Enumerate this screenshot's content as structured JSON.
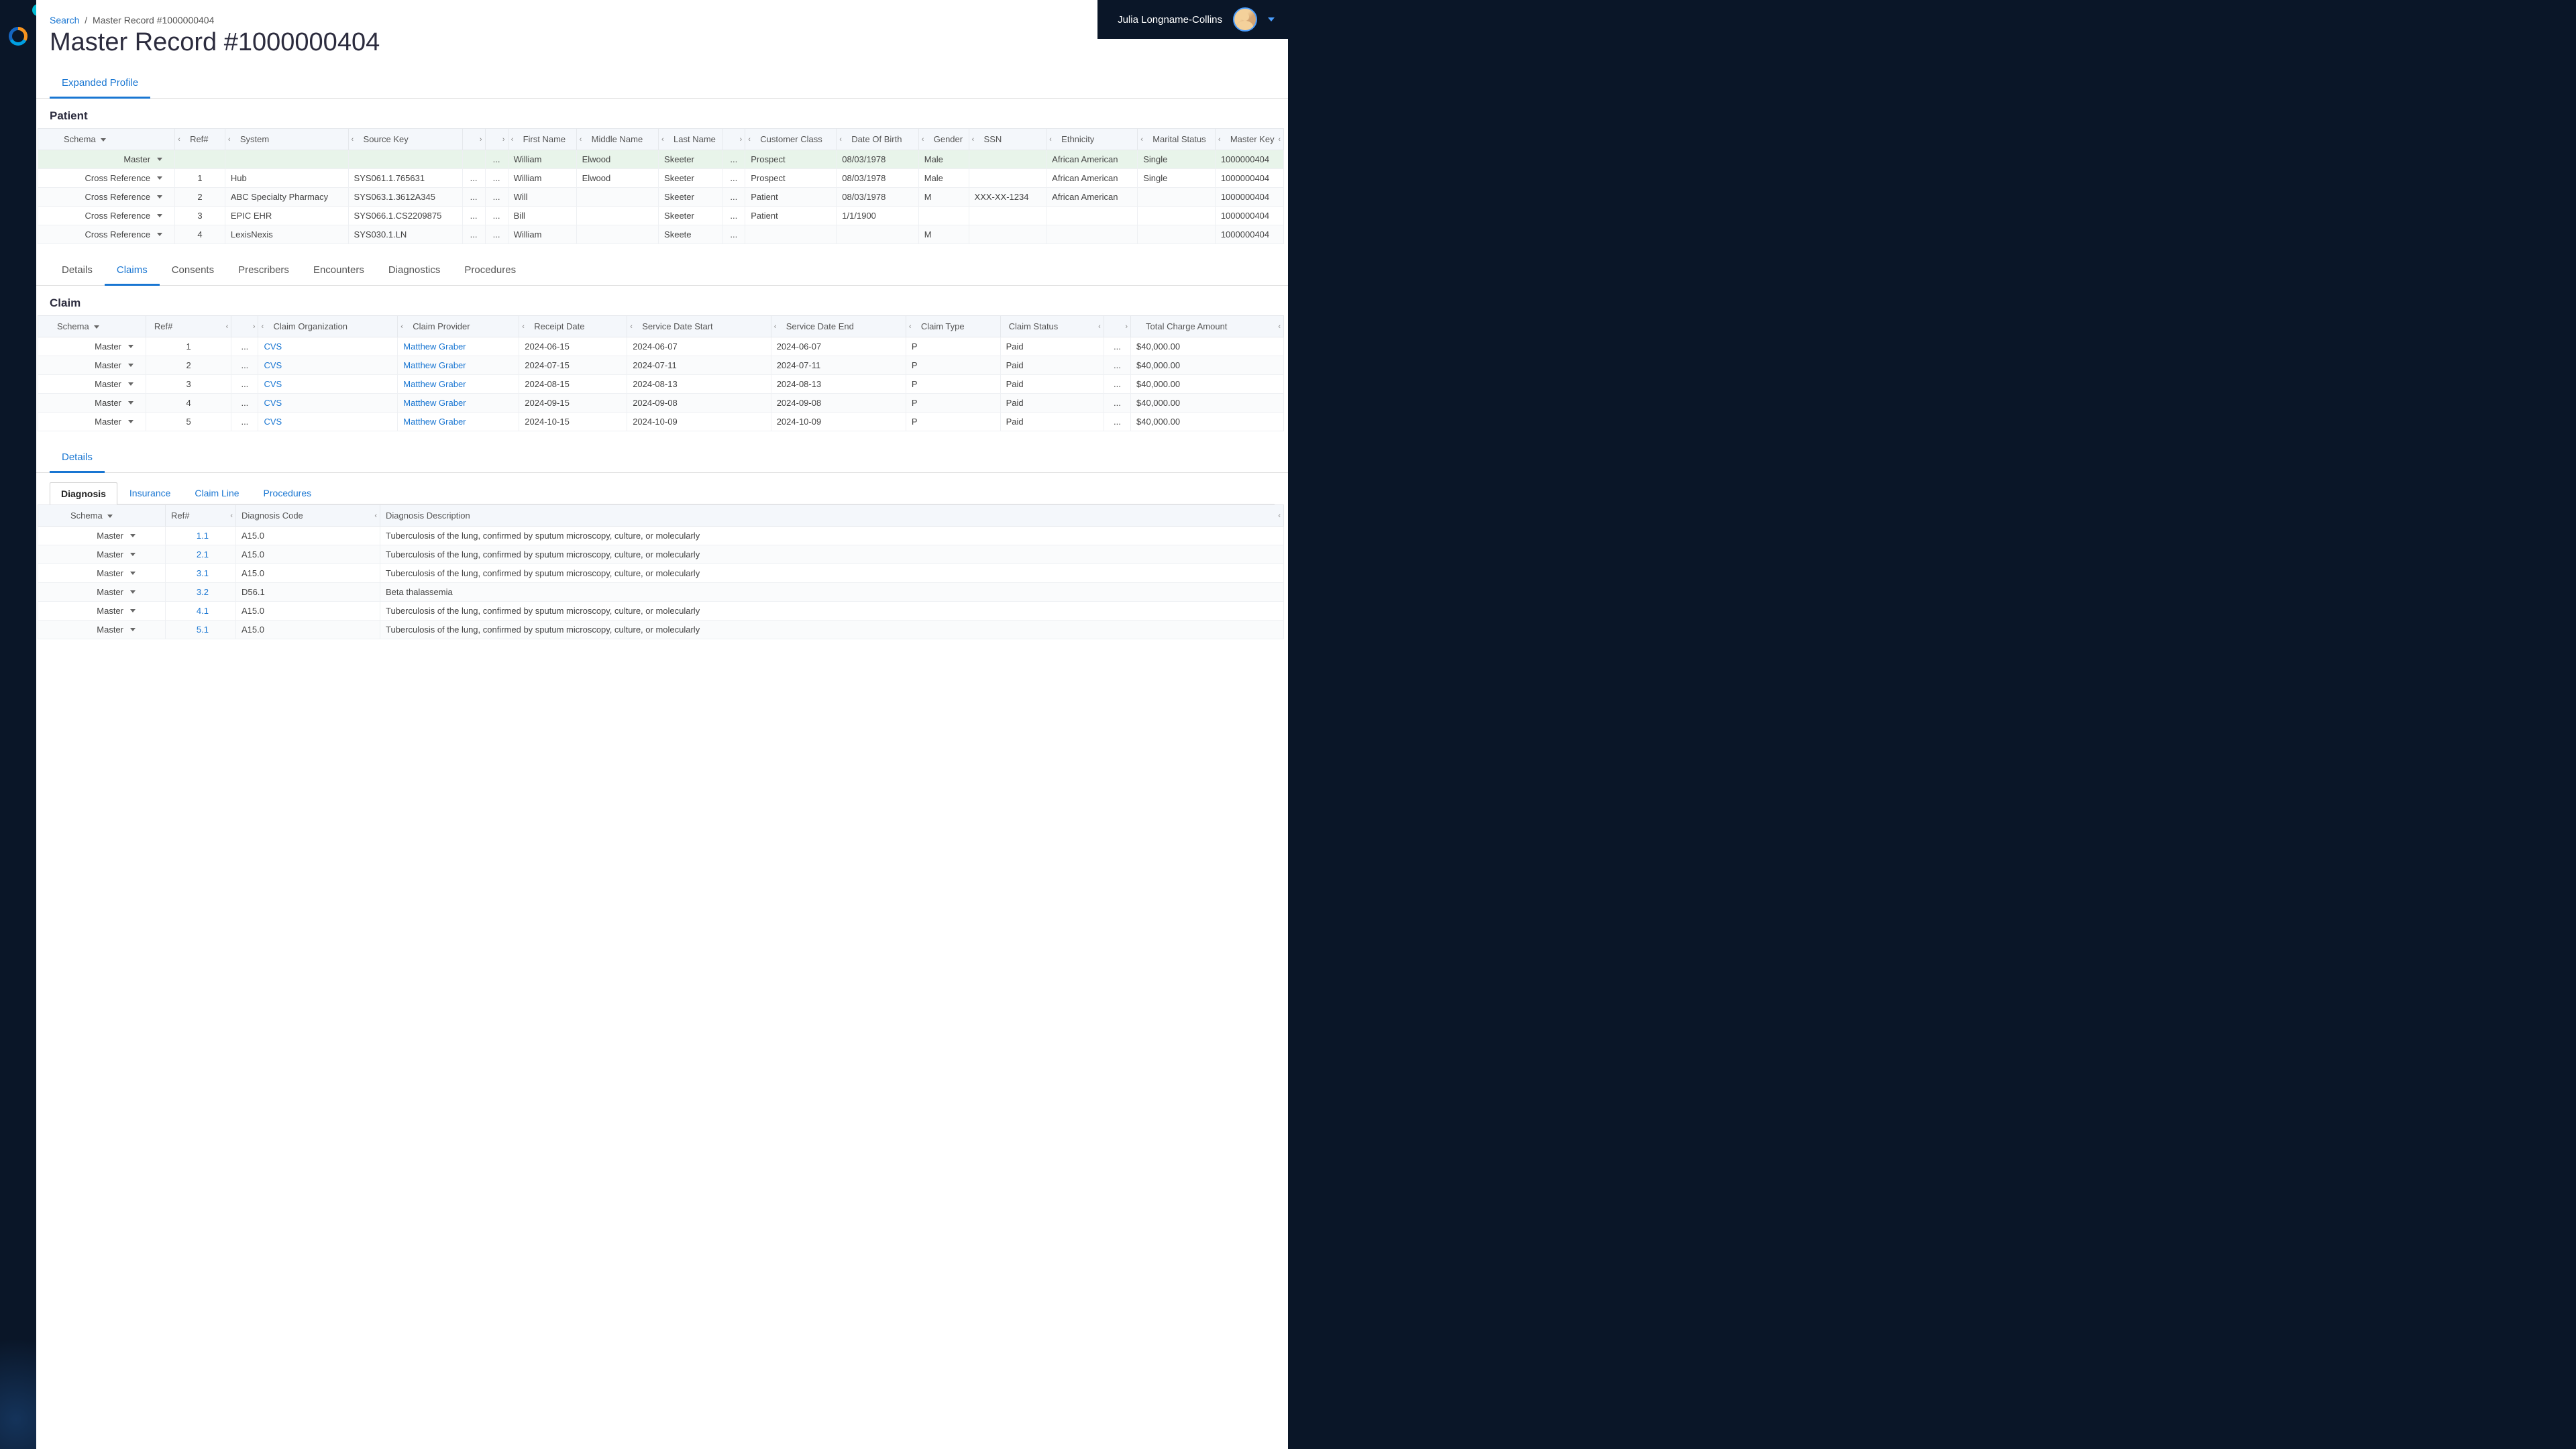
{
  "user": {
    "name": "Julia Longname-Collins"
  },
  "breadcrumb": {
    "link": "Search",
    "current": "Master Record #1000000404"
  },
  "page": {
    "title": "Master Record #1000000404"
  },
  "profileTabs": [
    {
      "label": "Expanded Profile",
      "active": true
    }
  ],
  "patientSection": {
    "title": "Patient",
    "columns": [
      "Schema",
      "Ref#",
      "System",
      "Source Key",
      "",
      "",
      "First Name",
      "Middle Name",
      "Last Name",
      "",
      "Customer Class",
      "Date Of Birth",
      "Gender",
      "SSN",
      "Ethnicity",
      "Marital Status",
      "Master Key"
    ],
    "rows": [
      {
        "schema": "Master",
        "ref": "",
        "system": "",
        "sourceKey": "",
        "c1": "",
        "c2": "...",
        "firstName": "William",
        "middleName": "Elwood",
        "lastName": "Skeeter",
        "c3": "...",
        "customerClass": "Prospect",
        "dob": "08/03/1978",
        "gender": "Male",
        "ssn": "",
        "ethnicity": "African American",
        "marital": "Single",
        "masterKey": "1000000404",
        "highlight": true
      },
      {
        "schema": "Cross Reference",
        "ref": "1",
        "system": "Hub",
        "sourceKey": "SYS061.1.765631",
        "c1": "...",
        "c2": "...",
        "firstName": "William",
        "middleName": "Elwood",
        "lastName": "Skeeter",
        "c3": "...",
        "customerClass": "Prospect",
        "dob": "08/03/1978",
        "gender": "Male",
        "ssn": "",
        "ethnicity": "African American",
        "marital": "Single",
        "masterKey": "1000000404"
      },
      {
        "schema": "Cross Reference",
        "ref": "2",
        "system": "ABC Specialty Pharmacy",
        "sourceKey": "SYS063.1.3612A345",
        "c1": "...",
        "c2": "...",
        "firstName": "Will",
        "middleName": "",
        "lastName": "Skeeter",
        "c3": "...",
        "customerClass": "Patient",
        "dob": "08/03/1978",
        "gender": "M",
        "ssn": "XXX-XX-1234",
        "ethnicity": "African American",
        "marital": "",
        "masterKey": "1000000404",
        "alt": true
      },
      {
        "schema": "Cross Reference",
        "ref": "3",
        "system": "EPIC EHR",
        "sourceKey": "SYS066.1.CS2209875",
        "c1": "...",
        "c2": "...",
        "firstName": "Bill",
        "middleName": "",
        "lastName": "Skeeter",
        "c3": "...",
        "customerClass": "Patient",
        "dob": "1/1/1900",
        "gender": "",
        "ssn": "",
        "ethnicity": "",
        "marital": "",
        "masterKey": "1000000404"
      },
      {
        "schema": "Cross Reference",
        "ref": "4",
        "system": "LexisNexis",
        "sourceKey": "SYS030.1.LN",
        "c1": "...",
        "c2": "...",
        "firstName": "William",
        "middleName": "",
        "lastName": "Skeete",
        "c3": "...",
        "customerClass": "",
        "dob": "",
        "gender": "M",
        "ssn": "",
        "ethnicity": "",
        "marital": "",
        "masterKey": "1000000404",
        "alt": true
      }
    ]
  },
  "detailTabs": [
    {
      "label": "Details"
    },
    {
      "label": "Claims",
      "active": true
    },
    {
      "label": "Consents"
    },
    {
      "label": "Prescribers"
    },
    {
      "label": "Encounters"
    },
    {
      "label": "Diagnostics"
    },
    {
      "label": "Procedures"
    }
  ],
  "claimSection": {
    "title": "Claim",
    "columns": [
      "Schema",
      "Ref#",
      "",
      "Claim Organization",
      "Claim Provider",
      "Receipt Date",
      "Service Date Start",
      "Service Date End",
      "Claim Type",
      "Claim Status",
      "",
      "Total Charge Amount"
    ],
    "rows": [
      {
        "schema": "Master",
        "ref": "1",
        "c1": "...",
        "org": "CVS",
        "provider": "Matthew Graber",
        "receipt": "2024-06-15",
        "start": "2024-06-07",
        "end": "2024-06-07",
        "type": "P",
        "status": "Paid",
        "c2": "...",
        "amount": "$40,000.00"
      },
      {
        "schema": "Master",
        "ref": "2",
        "c1": "...",
        "org": "CVS",
        "provider": "Matthew Graber",
        "receipt": "2024-07-15",
        "start": "2024-07-11",
        "end": "2024-07-11",
        "type": "P",
        "status": "Paid",
        "c2": "...",
        "amount": "$40,000.00",
        "alt": true
      },
      {
        "schema": "Master",
        "ref": "3",
        "c1": "...",
        "org": "CVS",
        "provider": "Matthew Graber",
        "receipt": "2024-08-15",
        "start": "2024-08-13",
        "end": "2024-08-13",
        "type": "P",
        "status": "Paid",
        "c2": "...",
        "amount": "$40,000.00"
      },
      {
        "schema": "Master",
        "ref": "4",
        "c1": "...",
        "org": "CVS",
        "provider": "Matthew Graber",
        "receipt": "2024-09-15",
        "start": "2024-09-08",
        "end": "2024-09-08",
        "type": "P",
        "status": "Paid",
        "c2": "...",
        "amount": "$40,000.00",
        "alt": true
      },
      {
        "schema": "Master",
        "ref": "5",
        "c1": "...",
        "org": "CVS",
        "provider": "Matthew Graber",
        "receipt": "2024-10-15",
        "start": "2024-10-09",
        "end": "2024-10-09",
        "type": "P",
        "status": "Paid",
        "c2": "...",
        "amount": "$40,000.00"
      }
    ]
  },
  "detailsSubTab": {
    "label": "Details",
    "active": true
  },
  "diagnosisTabs": [
    {
      "label": "Diagnosis",
      "boxed": true
    },
    {
      "label": "Insurance"
    },
    {
      "label": "Claim Line"
    },
    {
      "label": "Procedures"
    }
  ],
  "diagnosisSection": {
    "columns": [
      "Schema",
      "Ref#",
      "Diagnosis Code",
      "Diagnosis Description"
    ],
    "rows": [
      {
        "schema": "Master",
        "ref": "1.1",
        "code": "A15.0",
        "desc": "Tuberculosis of the lung, confirmed by sputum microscopy, culture, or molecularly"
      },
      {
        "schema": "Master",
        "ref": "2.1",
        "code": "A15.0",
        "desc": "Tuberculosis of the lung, confirmed by sputum microscopy, culture, or molecularly",
        "alt": true
      },
      {
        "schema": "Master",
        "ref": "3.1",
        "code": "A15.0",
        "desc": "Tuberculosis of the lung, confirmed by sputum microscopy, culture, or molecularly"
      },
      {
        "schema": "Master",
        "ref": "3.2",
        "code": "D56.1",
        "desc": "Beta thalassemia",
        "alt": true
      },
      {
        "schema": "Master",
        "ref": "4.1",
        "code": "A15.0",
        "desc": "Tuberculosis of the lung, confirmed by sputum microscopy, culture, or molecularly"
      },
      {
        "schema": "Master",
        "ref": "5.1",
        "code": "A15.0",
        "desc": "Tuberculosis of the lung, confirmed by sputum microscopy, culture, or molecularly",
        "alt": true
      }
    ]
  }
}
